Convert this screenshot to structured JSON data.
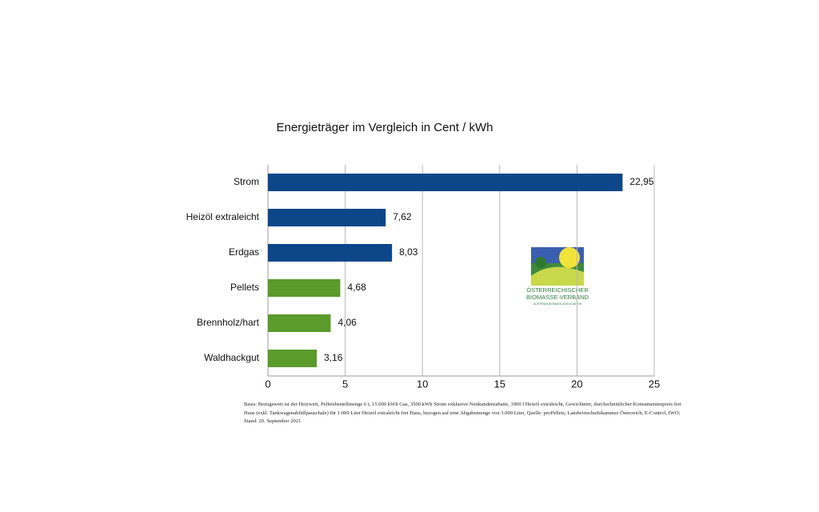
{
  "chart_data": {
    "type": "hbar",
    "title": "Energieträger im Vergleich in Cent / kWh",
    "categories": [
      "Strom",
      "Heizöl extraleicht",
      "Erdgas",
      "Pellets",
      "Brennholz/hart",
      "Waldhackgut"
    ],
    "values": [
      22.95,
      7.62,
      8.03,
      4.68,
      4.06,
      3.16
    ],
    "value_labels": [
      "22,95",
      "7,62",
      "8,03",
      "4,68",
      "4,06",
      "3,16"
    ],
    "colors": [
      "#0d4689",
      "#0d4689",
      "#0d4689",
      "#5a9b2b",
      "#5a9b2b",
      "#5a9b2b"
    ],
    "xlim": [
      0,
      25
    ],
    "xticks": [
      0,
      5,
      10,
      15,
      20,
      25
    ],
    "grid": true,
    "footnote": "Basis: Bezugswert ist der Heizwert, Pelletsbestellmenge 6 t, 15.000 kWh Gas, 3500 kWh Strom exklusive Neukundenrabatte, 1000 l Heizöl extraleicht, Gewichteter, durchschnittlicher Konsumentenpreis frei Haus (exkl. Tankwagenabfüllpauschale) für 1.000 Liter Heizöl extraleicht frei Haus, bezogen auf eine Abgabemenge von 3.000 Liter, Quelle: proPellets, Landwirtschaftskammer Österreich, E-Control, IWO; Stand: 20. September 2021"
  },
  "logo": {
    "line1": "ÖSTERREICHISCHER",
    "line2": "BIOMASSE-VERBAND",
    "line3": "AUSTRIAN BIOMASS ASSOCIATION"
  }
}
